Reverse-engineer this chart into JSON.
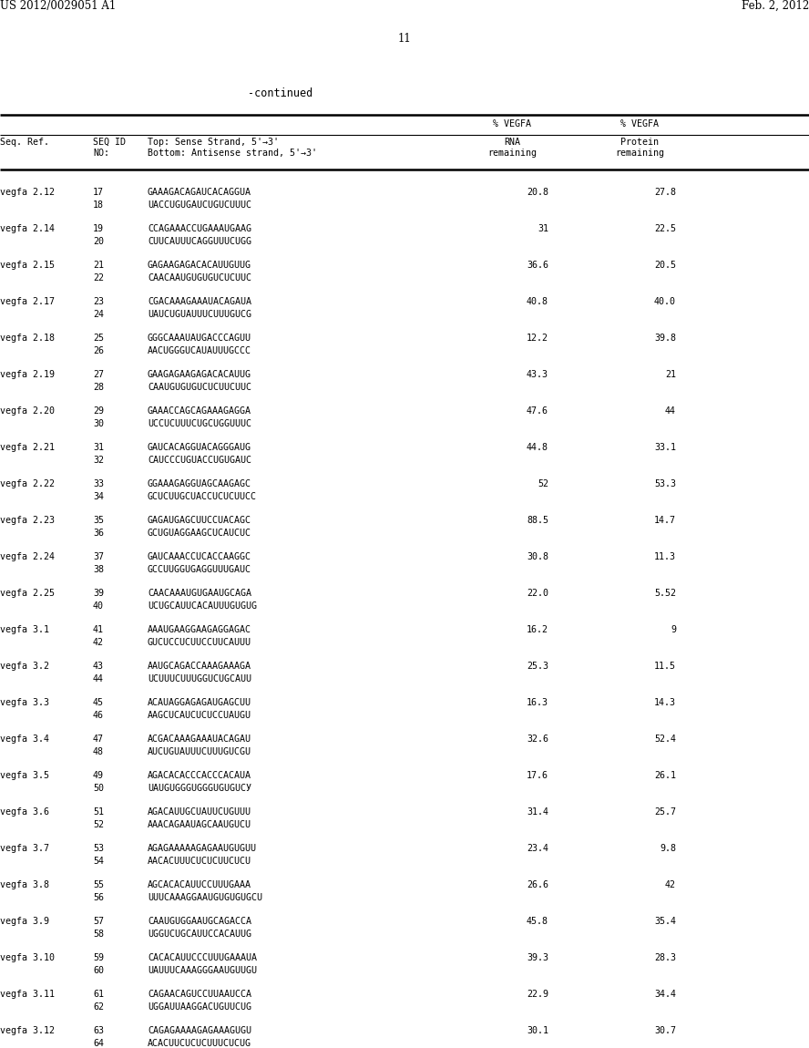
{
  "header_left": "US 2012/0029051 A1",
  "header_right": "Feb. 2, 2012",
  "page_number": "11",
  "continued_label": "-continued",
  "rows": [
    {
      "ref": "vegfa 2.12",
      "id1": "17",
      "id2": "18",
      "seq1": "GAAAGACAGAUCACAGGUA",
      "seq2": "UACCUGUGAUCUGUCUUUC",
      "rna": "20.8",
      "protein": "27.8"
    },
    {
      "ref": "vegfa 2.14",
      "id1": "19",
      "id2": "20",
      "seq1": "CCAGAAACCUGAAAUGAAG",
      "seq2": "CUUCAUUUCAGGUUUCUGG",
      "rna": "31",
      "protein": "22.5"
    },
    {
      "ref": "vegfa 2.15",
      "id1": "21",
      "id2": "22",
      "seq1": "GAGAAGAGACACAUUGUUG",
      "seq2": "CAACAAUGUGUGUCUCUUC",
      "rna": "36.6",
      "protein": "20.5"
    },
    {
      "ref": "vegfa 2.17",
      "id1": "23",
      "id2": "24",
      "seq1": "CGACAAAGAAAUACAGAUA",
      "seq2": "UAUCUGUAUUUCUUUGUCG",
      "rna": "40.8",
      "protein": "40.0"
    },
    {
      "ref": "vegfa 2.18",
      "id1": "25",
      "id2": "26",
      "seq1": "GGGCAAAUAUGACCCAGUU",
      "seq2": "AACUGGGUCAUAUUUGCCC",
      "rna": "12.2",
      "protein": "39.8"
    },
    {
      "ref": "vegfa 2.19",
      "id1": "27",
      "id2": "28",
      "seq1": "GAAGAGAAGAGACACAUUG",
      "seq2": "CAAUGUGUGUCUCUUCUUC",
      "rna": "43.3",
      "protein": "21"
    },
    {
      "ref": "vegfa 2.20",
      "id1": "29",
      "id2": "30",
      "seq1": "GAAACCAGCAGAAAGAGGA",
      "seq2": "UCCUCUUUCUGCUGGUUUC",
      "rna": "47.6",
      "protein": "44"
    },
    {
      "ref": "vegfa 2.21",
      "id1": "31",
      "id2": "32",
      "seq1": "GAUCACAGGUACAGGGAUG",
      "seq2": "CAUCCCUGUACCUGUGAUC",
      "rna": "44.8",
      "protein": "33.1"
    },
    {
      "ref": "vegfa 2.22",
      "id1": "33",
      "id2": "34",
      "seq1": "GGAAAGAGGUAGCAAGAGC",
      "seq2": "GCUCUUGCUACCUCUCUUCC",
      "rna": "52",
      "protein": "53.3"
    },
    {
      "ref": "vegfa 2.23",
      "id1": "35",
      "id2": "36",
      "seq1": "GAGAUGAGCUUCCUACAGC",
      "seq2": "GCUGUAGGAAGCUCAUCUC",
      "rna": "88.5",
      "protein": "14.7"
    },
    {
      "ref": "vegfa 2.24",
      "id1": "37",
      "id2": "38",
      "seq1": "GAUCAAACCUCACCAAGGC",
      "seq2": "GCCUUGGUGAGGUUUGAUC",
      "rna": "30.8",
      "protein": "11.3"
    },
    {
      "ref": "vegfa 2.25",
      "id1": "39",
      "id2": "40",
      "seq1": "CAACAAAUGUGAAUGCAGA",
      "seq2": "UCUGCAUUCACAUUUGUGUG",
      "rna": "22.0",
      "protein": "5.52"
    },
    {
      "ref": "vegfa 3.1",
      "id1": "41",
      "id2": "42",
      "seq1": "AAAUGAAGGAAGAGGAGAC",
      "seq2": "GUCUCCUCUUCCUUCAUUU",
      "rna": "16.2",
      "protein": "9"
    },
    {
      "ref": "vegfa 3.2",
      "id1": "43",
      "id2": "44",
      "seq1": "AAUGCAGACCAAAGAAAGA",
      "seq2": "UCUUUCUUUGGUCUGCAUU",
      "rna": "25.3",
      "protein": "11.5"
    },
    {
      "ref": "vegfa 3.3",
      "id1": "45",
      "id2": "46",
      "seq1": "ACAUAGGAGAGAUGAGCUU",
      "seq2": "AAGCUCAUCUCUCCUAUGU",
      "rna": "16.3",
      "protein": "14.3"
    },
    {
      "ref": "vegfa 3.4",
      "id1": "47",
      "id2": "48",
      "seq1": "ACGACAAAGAAAUACAGAU",
      "seq2": "AUCUGUAUUUCUUUGUCGU",
      "rna": "32.6",
      "protein": "52.4"
    },
    {
      "ref": "vegfa 3.5",
      "id1": "49",
      "id2": "50",
      "seq1": "AGACACACCCACCCACAUA",
      "seq2": "UAUGUGGGUGGGUGUGUCУ",
      "rna": "17.6",
      "protein": "26.1"
    },
    {
      "ref": "vegfa 3.6",
      "id1": "51",
      "id2": "52",
      "seq1": "AGACAUUGCUAUUCUGUUU",
      "seq2": "AAACAGAAUAGCAAUGUCU",
      "rna": "31.4",
      "protein": "25.7"
    },
    {
      "ref": "vegfa 3.7",
      "id1": "53",
      "id2": "54",
      "seq1": "AGAGAAAAAGAGAAUGUGUU",
      "seq2": "AACACUUUCUCUCUUCUCU",
      "rna": "23.4",
      "protein": "9.8"
    },
    {
      "ref": "vegfa 3.8",
      "id1": "55",
      "id2": "56",
      "seq1": "AGCACACAUUCCUUUGAAA",
      "seq2": "UUUCAAAGGAAUGUGUGUGCU",
      "rna": "26.6",
      "protein": "42"
    },
    {
      "ref": "vegfa 3.9",
      "id1": "57",
      "id2": "58",
      "seq1": "CAAUGUGGAAUGCAGACCA",
      "seq2": "UGGUCUGCAUUCCACAUUG",
      "rna": "45.8",
      "protein": "35.4"
    },
    {
      "ref": "vegfa 3.10",
      "id1": "59",
      "id2": "60",
      "seq1": "CACACAUUCCCUUUGAAAUA",
      "seq2": "UAUUUCAAAGGGAAUGUUGU",
      "rna": "39.3",
      "protein": "28.3"
    },
    {
      "ref": "vegfa 3.11",
      "id1": "61",
      "id2": "62",
      "seq1": "CAGAACAGUCCUUAAUCCA",
      "seq2": "UGGAUUAAGGACUGUUCUG",
      "rna": "22.9",
      "protein": "34.4"
    },
    {
      "ref": "vegfa 3.12",
      "id1": "63",
      "id2": "64",
      "seq1": "CAGAGAAAAGAGAAAGUGU",
      "seq2": "ACACUUCUCUCUUUCUCUG",
      "rna": "30.1",
      "protein": "30.7"
    }
  ],
  "bg_color": "#ffffff",
  "text_color": "#000000"
}
